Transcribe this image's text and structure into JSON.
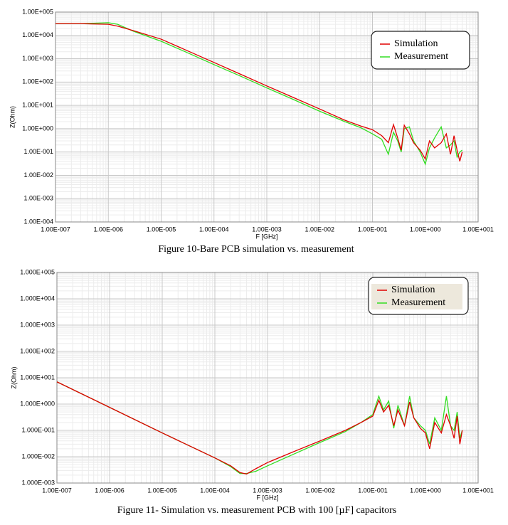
{
  "chart_data": [
    {
      "type": "line",
      "caption": "Figure 10-Bare PCB simulation vs. measurement",
      "xlabel": "F [GHz]",
      "ylabel": "Z(Ohm)",
      "xscale": "log",
      "yscale": "log",
      "grid": true,
      "legend_position": "top-right",
      "xlim": [
        1e-07,
        10
      ],
      "ylim": [
        0.0001,
        100000
      ],
      "xticks": [
        {
          "value": 1e-07,
          "label": "1.00E-007"
        },
        {
          "value": 1e-06,
          "label": "1.00E-006"
        },
        {
          "value": 1e-05,
          "label": "1.00E-005"
        },
        {
          "value": 0.0001,
          "label": "1.00E-004"
        },
        {
          "value": 0.001,
          "label": "1.00E-003"
        },
        {
          "value": 0.01,
          "label": "1.00E-002"
        },
        {
          "value": 0.1,
          "label": "1.00E-001"
        },
        {
          "value": 1,
          "label": "1.00E+000"
        },
        {
          "value": 10,
          "label": "1.00E+001"
        }
      ],
      "yticks": [
        {
          "value": 100000,
          "label": "1.00E+005"
        },
        {
          "value": 10000,
          "label": "1.00E+004"
        },
        {
          "value": 1000,
          "label": "1.00E+003"
        },
        {
          "value": 100,
          "label": "1.00E+002"
        },
        {
          "value": 10,
          "label": "1.00E+001"
        },
        {
          "value": 1,
          "label": "1.00E+000"
        },
        {
          "value": 0.1,
          "label": "1.00E-001"
        },
        {
          "value": 0.01,
          "label": "1.00E-002"
        },
        {
          "value": 0.001,
          "label": "1.00E-003"
        },
        {
          "value": 0.0001,
          "label": "1.00E-004"
        }
      ],
      "x": [
        1e-07,
        3e-07,
        1e-06,
        1.5e-06,
        3e-06,
        1e-05,
        3e-05,
        0.0001,
        0.0003,
        0.001,
        0.003,
        0.01,
        0.03,
        0.06,
        0.1,
        0.15,
        0.2,
        0.25,
        0.3,
        0.35,
        0.4,
        0.5,
        0.6,
        0.8,
        1.0,
        1.2,
        1.5,
        2,
        2.5,
        3,
        3.5,
        4,
        4.5,
        5
      ],
      "series": [
        {
          "name": "Simulation",
          "color": "#e00000",
          "values": [
            32000,
            32000,
            30000,
            25000,
            16000,
            6900,
            2300,
            690,
            230,
            68,
            23,
            7,
            2.3,
            1.3,
            0.9,
            0.5,
            0.25,
            1.5,
            0.4,
            0.12,
            1.4,
            0.6,
            0.25,
            0.12,
            0.05,
            0.3,
            0.15,
            0.25,
            0.6,
            0.08,
            0.5,
            0.12,
            0.04,
            0.1
          ]
        },
        {
          "name": "Measurement",
          "color": "#33dd22",
          "values": [
            32000,
            32000,
            35000,
            30000,
            15000,
            5600,
            1900,
            560,
            190,
            56,
            19,
            5.6,
            2.0,
            1.1,
            0.6,
            0.35,
            0.08,
            0.7,
            0.3,
            0.1,
            1.0,
            1.2,
            0.3,
            0.1,
            0.03,
            0.15,
            0.4,
            1.2,
            0.15,
            0.2,
            0.3,
            0.06,
            0.1,
            0.12
          ]
        }
      ]
    },
    {
      "type": "line",
      "caption": "Figure 11- Simulation vs. measurement PCB with 100 [µF] capacitors",
      "xlabel": "F [GHz]",
      "ylabel": "Z(Ohm)",
      "xscale": "log",
      "yscale": "log",
      "grid": true,
      "legend_position": "top-right",
      "xlim": [
        1e-07,
        10
      ],
      "ylim": [
        0.001,
        100000
      ],
      "xticks": [
        {
          "value": 1e-07,
          "label": "1.00E-007"
        },
        {
          "value": 1e-06,
          "label": "1.00E-006"
        },
        {
          "value": 1e-05,
          "label": "1.00E-005"
        },
        {
          "value": 0.0001,
          "label": "1.00E-004"
        },
        {
          "value": 0.001,
          "label": "1.00E-003"
        },
        {
          "value": 0.01,
          "label": "1.00E-002"
        },
        {
          "value": 0.1,
          "label": "1.00E-001"
        },
        {
          "value": 1,
          "label": "1.00E+000"
        },
        {
          "value": 10,
          "label": "1.00E+001"
        }
      ],
      "yticks": [
        {
          "value": 100000,
          "label": "1.000E+005"
        },
        {
          "value": 10000,
          "label": "1.000E+004"
        },
        {
          "value": 1000,
          "label": "1.000E+003"
        },
        {
          "value": 100,
          "label": "1.000E+002"
        },
        {
          "value": 10,
          "label": "1.000E+001"
        },
        {
          "value": 1,
          "label": "1.000E+000"
        },
        {
          "value": 0.1,
          "label": "1.000E-001"
        },
        {
          "value": 0.01,
          "label": "1.000E-002"
        },
        {
          "value": 0.001,
          "label": "1.000E-003"
        }
      ],
      "x": [
        1e-07,
        1e-06,
        1e-05,
        0.0001,
        0.0002,
        0.0003,
        0.0004,
        0.0006,
        0.001,
        0.003,
        0.01,
        0.03,
        0.06,
        0.1,
        0.13,
        0.16,
        0.2,
        0.25,
        0.3,
        0.4,
        0.5,
        0.6,
        0.8,
        1.0,
        1.2,
        1.5,
        2,
        2.5,
        3,
        3.5,
        4,
        4.5,
        5
      ],
      "series": [
        {
          "name": "Simulation",
          "color": "#e00000",
          "values": [
            7,
            0.75,
            0.08,
            0.009,
            0.0045,
            0.0025,
            0.0022,
            0.0035,
            0.006,
            0.015,
            0.04,
            0.1,
            0.2,
            0.35,
            1.4,
            0.5,
            0.9,
            0.15,
            0.6,
            0.15,
            1.2,
            0.3,
            0.12,
            0.08,
            0.02,
            0.2,
            0.08,
            0.4,
            0.15,
            0.05,
            0.35,
            0.03,
            0.1
          ]
        },
        {
          "name": "Measurement",
          "color": "#33dd22",
          "values": [
            7,
            0.75,
            0.08,
            0.009,
            0.0042,
            0.0023,
            0.0023,
            0.0028,
            0.0045,
            0.012,
            0.035,
            0.09,
            0.2,
            0.4,
            2.0,
            0.6,
            1.3,
            0.12,
            0.9,
            0.15,
            2.0,
            0.3,
            0.15,
            0.1,
            0.03,
            0.3,
            0.1,
            2.0,
            0.15,
            0.1,
            0.5,
            0.05,
            0.1
          ]
        }
      ]
    }
  ]
}
